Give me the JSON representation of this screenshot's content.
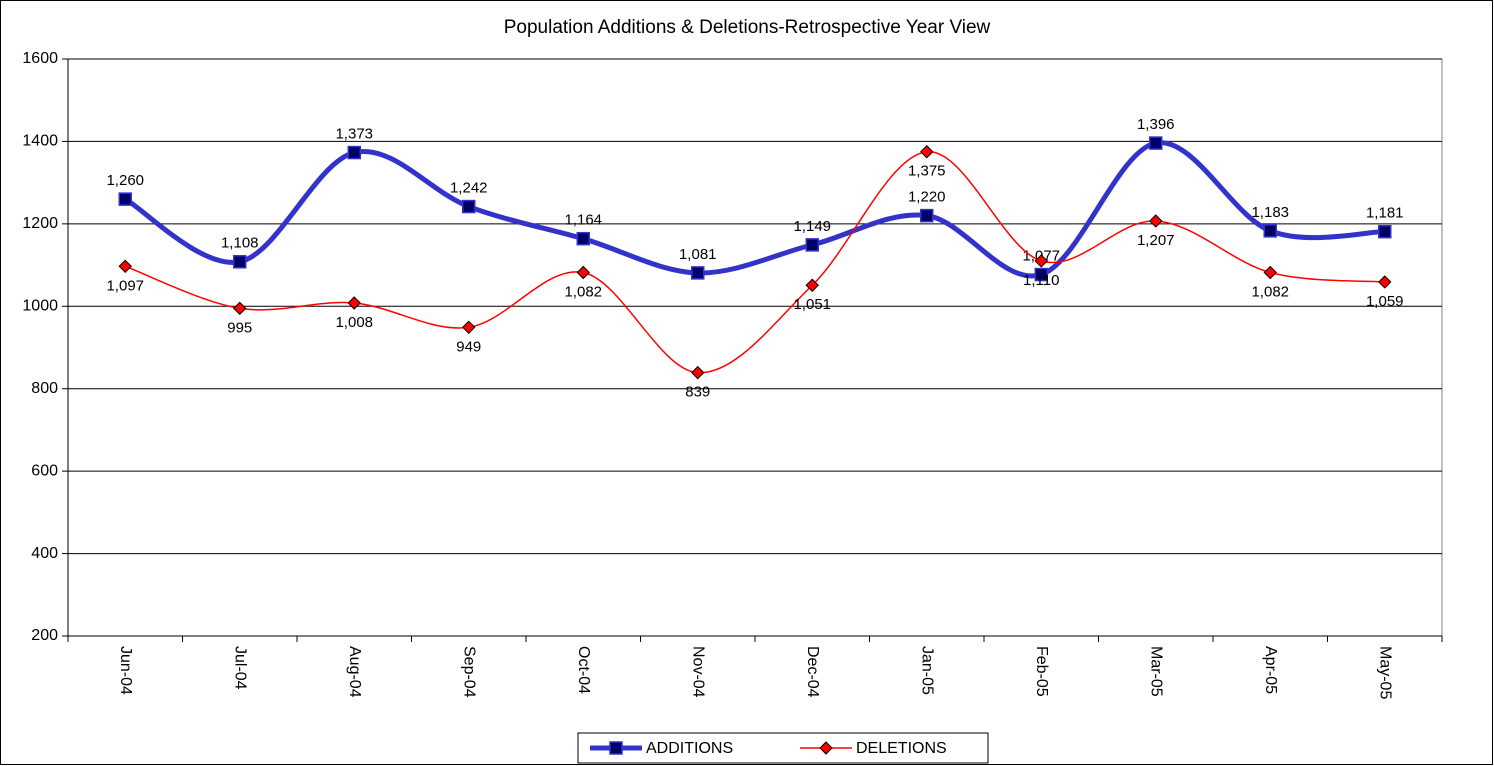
{
  "chart_data": {
    "type": "line",
    "title": "Population Additions & Deletions-Retrospective Year View",
    "categories": [
      "Jun-04",
      "Jul-04",
      "Aug-04",
      "Sep-04",
      "Oct-04",
      "Nov-04",
      "Dec-04",
      "Jan-05",
      "Feb-05",
      "Mar-05",
      "Apr-05",
      "May-05"
    ],
    "series": [
      {
        "name": "ADDITIONS",
        "color": "#3333cc",
        "marker_color": "#000066",
        "values": [
          1260,
          1108,
          1373,
          1242,
          1164,
          1081,
          1149,
          1220,
          1077,
          1396,
          1183,
          1181
        ],
        "value_labels": [
          "1,260",
          "1,108",
          "1,373",
          "1,242",
          "1,164",
          "1,081",
          "1,149",
          "1,220",
          "1,077",
          "1,396",
          "1,183",
          "1,181"
        ]
      },
      {
        "name": "DELETIONS",
        "color": "#ff0000",
        "marker_color": "#ff0000",
        "values": [
          1097,
          995,
          1008,
          949,
          1082,
          839,
          1051,
          1375,
          1110,
          1207,
          1082,
          1059
        ],
        "value_labels": [
          "1,097",
          "995",
          "1,008",
          "949",
          "1,082",
          "839",
          "1,051",
          "1,375",
          "1,110",
          "1,207",
          "1,082",
          "1,059"
        ]
      }
    ],
    "ylim": [
      200,
      1600
    ],
    "yticks": [
      200,
      400,
      600,
      800,
      1000,
      1200,
      1400,
      1600
    ],
    "grid": true,
    "smooth": true,
    "legend": "bottom"
  }
}
